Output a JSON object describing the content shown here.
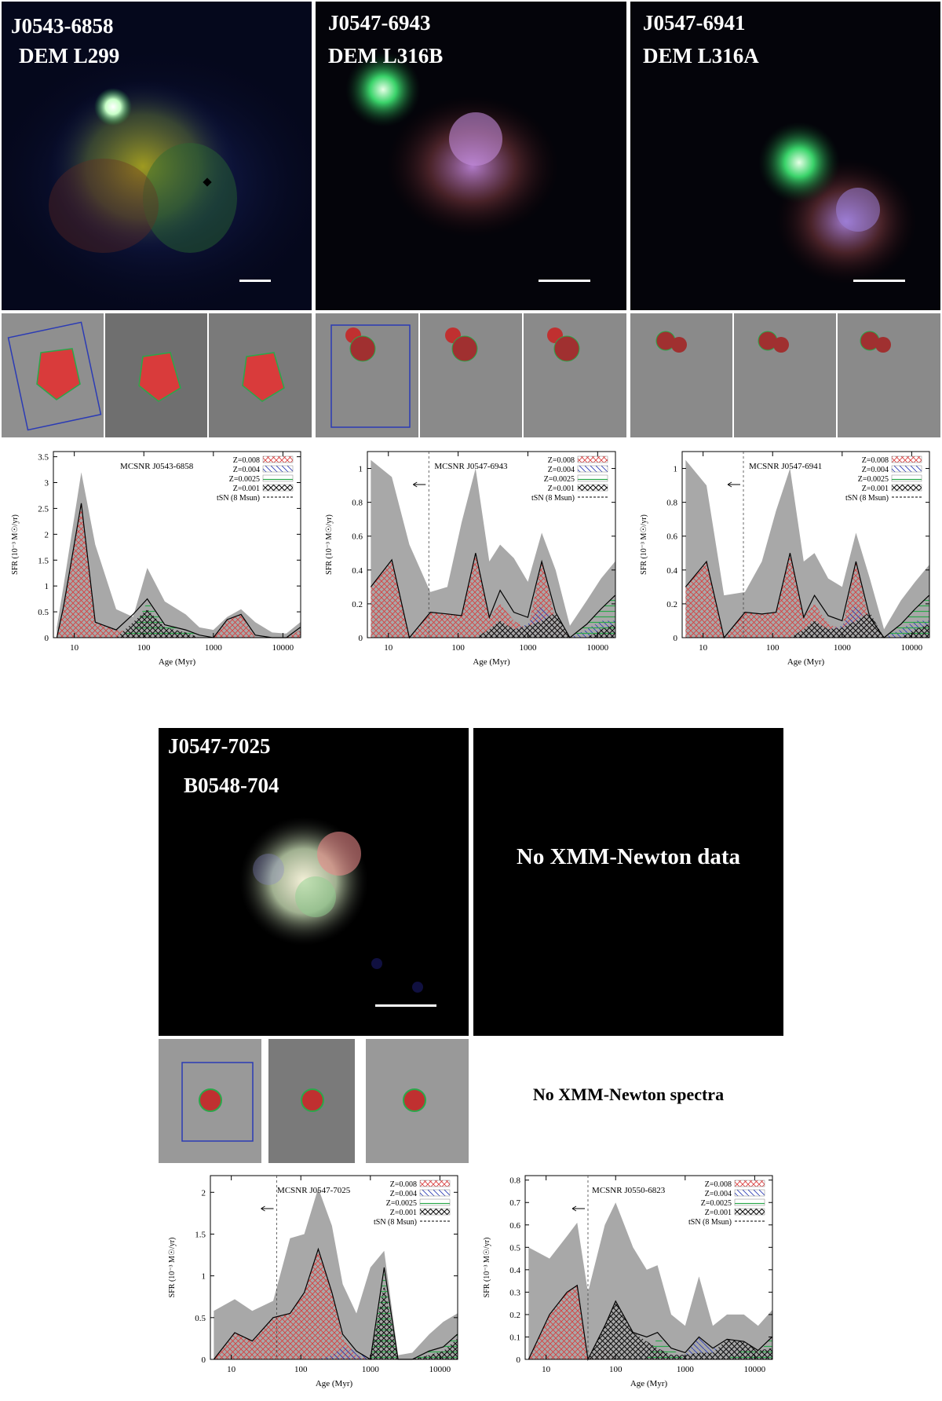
{
  "panels": [
    {
      "id": "J0543-6858",
      "alt": "DEM L299"
    },
    {
      "id": "J0547-6943",
      "alt": "DEM L316B"
    },
    {
      "id": "J0547-6941",
      "alt": "DEM L316A"
    },
    {
      "id": "J0547-7025",
      "alt": "B0548-704"
    }
  ],
  "messages": {
    "no_data": "No XMM-Newton data",
    "no_spectra": "No XMM-Newton spectra"
  },
  "colors": {
    "z008": "#d93b3b",
    "z004": "#2b3bb5",
    "z0025": "#2aa84a",
    "z001": "#111111",
    "envelope": "#a8a8a8"
  },
  "shared_axes": {
    "xlabel": "Age (Myr)",
    "ylabel": "SFR (10⁻³ M☉/yr)",
    "xticks": [
      "10",
      "100",
      "1000",
      "10000"
    ],
    "legend": [
      "Z=0.008",
      "Z=0.004",
      "Z=0.0025",
      "Z=0.001",
      "tSN (8 Msun)"
    ]
  },
  "chart_data": [
    {
      "type": "area",
      "title": "MCSNR J0543-6858",
      "xscale": "log",
      "xlim": [
        5,
        18000
      ],
      "ylim": [
        0,
        3.6
      ],
      "yticks": [
        "0",
        "0.5",
        "1",
        "1.5",
        "2",
        "2.5",
        "3",
        "3.5"
      ],
      "x": [
        5.6,
        7,
        12.6,
        20,
        40,
        70,
        112,
        200,
        400,
        630,
        1000,
        1580,
        2500,
        4000,
        7000,
        11200,
        17800
      ],
      "upper": [
        0.2,
        1.0,
        3.2,
        1.8,
        0.55,
        0.4,
        1.35,
        0.7,
        0.45,
        0.2,
        0.15,
        0.4,
        0.55,
        0.3,
        0.1,
        0.08,
        0.3
      ],
      "total": [
        0.0,
        0.6,
        2.6,
        0.3,
        0.15,
        0.45,
        0.75,
        0.25,
        0.15,
        0.05,
        0.0,
        0.35,
        0.45,
        0.05,
        0.0,
        0.0,
        0.2
      ],
      "series": [
        {
          "name": "Z=0.008",
          "values": [
            0.0,
            0.6,
            2.6,
            0.3,
            0.15,
            0.1,
            0.05,
            0.05,
            0.05,
            0.0,
            0.0,
            0.35,
            0.45,
            0.0,
            0.0,
            0.0,
            0.15
          ]
        },
        {
          "name": "Z=0.004",
          "values": [
            0,
            0,
            0,
            0,
            0,
            0,
            0,
            0,
            0,
            0,
            0,
            0,
            0,
            0,
            0,
            0,
            0
          ]
        },
        {
          "name": "Z=0.0025",
          "values": [
            0,
            0,
            0,
            0,
            0,
            0.15,
            0.7,
            0.25,
            0.15,
            0.05,
            0,
            0,
            0,
            0.05,
            0,
            0,
            0
          ]
        },
        {
          "name": "Z=0.001",
          "values": [
            0,
            0,
            0,
            0,
            0,
            0.3,
            0.55,
            0.2,
            0.1,
            0.0,
            0,
            0,
            0,
            0,
            0,
            0,
            0
          ]
        }
      ],
      "tsn": null
    },
    {
      "type": "area",
      "title": "MCSNR J0547-6943",
      "xscale": "log",
      "xlim": [
        5,
        18000
      ],
      "ylim": [
        0,
        1.1
      ],
      "yticks": [
        "0",
        "0.2",
        "0.4",
        "0.6",
        "0.8",
        "1"
      ],
      "x": [
        5.6,
        11.2,
        20,
        40,
        70,
        112,
        178,
        280,
        400,
        630,
        1000,
        1580,
        2500,
        4000,
        7000,
        11200,
        17800
      ],
      "upper": [
        1.05,
        0.95,
        0.55,
        0.27,
        0.3,
        0.68,
        1.0,
        0.45,
        0.55,
        0.47,
        0.33,
        0.62,
        0.4,
        0.07,
        0.22,
        0.35,
        0.45
      ],
      "total": [
        0.3,
        0.46,
        0.0,
        0.15,
        0.14,
        0.13,
        0.5,
        0.12,
        0.28,
        0.15,
        0.12,
        0.45,
        0.15,
        0.0,
        0.08,
        0.17,
        0.25
      ],
      "series": [
        {
          "name": "Z=0.008",
          "values": [
            0.3,
            0.46,
            0.0,
            0.15,
            0.14,
            0.13,
            0.5,
            0.12,
            0.2,
            0.1,
            0.05,
            0.45,
            0.1,
            0.0,
            0.0,
            0.0,
            0.0
          ]
        },
        {
          "name": "Z=0.004",
          "values": [
            0,
            0,
            0,
            0,
            0,
            0,
            0,
            0,
            0.05,
            0.05,
            0.08,
            0.2,
            0.05,
            0,
            0.05,
            0.1,
            0.1
          ]
        },
        {
          "name": "Z=0.0025",
          "values": [
            0,
            0,
            0,
            0,
            0,
            0,
            0,
            0,
            0,
            0,
            0,
            0,
            0,
            0,
            0.08,
            0.17,
            0.25
          ]
        },
        {
          "name": "Z=0.001",
          "values": [
            0,
            0,
            0,
            0,
            0,
            0,
            0,
            0.05,
            0.1,
            0.05,
            0.07,
            0.1,
            0.15,
            0,
            0,
            0.05,
            0.08
          ]
        }
      ],
      "tsn": 38
    },
    {
      "type": "area",
      "title": "MCSNR J0547-6941",
      "xscale": "log",
      "xlim": [
        5,
        18000
      ],
      "ylim": [
        0,
        1.1
      ],
      "yticks": [
        "0",
        "0.2",
        "0.4",
        "0.6",
        "0.8",
        "1"
      ],
      "x": [
        5.6,
        11.2,
        20,
        40,
        70,
        112,
        178,
        280,
        400,
        630,
        1000,
        1580,
        2500,
        4000,
        7000,
        11200,
        17800
      ],
      "upper": [
        1.05,
        0.9,
        0.25,
        0.27,
        0.45,
        0.75,
        1.0,
        0.45,
        0.5,
        0.35,
        0.3,
        0.62,
        0.35,
        0.05,
        0.22,
        0.33,
        0.43
      ],
      "total": [
        0.3,
        0.45,
        0.0,
        0.15,
        0.14,
        0.15,
        0.5,
        0.12,
        0.25,
        0.13,
        0.1,
        0.45,
        0.12,
        0.0,
        0.08,
        0.17,
        0.25
      ],
      "series": [
        {
          "name": "Z=0.008",
          "values": [
            0.3,
            0.45,
            0.0,
            0.15,
            0.14,
            0.15,
            0.5,
            0.12,
            0.2,
            0.08,
            0.05,
            0.45,
            0.08,
            0,
            0,
            0,
            0
          ]
        },
        {
          "name": "Z=0.004",
          "values": [
            0,
            0,
            0,
            0,
            0,
            0,
            0,
            0,
            0.05,
            0.05,
            0.07,
            0.2,
            0.05,
            0,
            0.05,
            0.1,
            0.1
          ]
        },
        {
          "name": "Z=0.0025",
          "values": [
            0,
            0,
            0,
            0,
            0,
            0,
            0,
            0,
            0,
            0,
            0,
            0,
            0,
            0,
            0.08,
            0.17,
            0.25
          ]
        },
        {
          "name": "Z=0.001",
          "values": [
            0,
            0,
            0,
            0,
            0,
            0,
            0,
            0.05,
            0.1,
            0.05,
            0.06,
            0.1,
            0.15,
            0,
            0,
            0.05,
            0.08
          ]
        }
      ],
      "tsn": 38
    },
    {
      "type": "area",
      "title": "MCSNR J0547-7025",
      "xscale": "log",
      "xlim": [
        5,
        18000
      ],
      "ylim": [
        0,
        2.2
      ],
      "yticks": [
        "0",
        "0.5",
        "1",
        "1.5",
        "2"
      ],
      "x": [
        5.6,
        11.2,
        20,
        40,
        70,
        112,
        178,
        280,
        400,
        630,
        1000,
        1580,
        2500,
        4000,
        7000,
        11200,
        17800
      ],
      "upper": [
        0.58,
        0.72,
        0.58,
        0.7,
        1.45,
        1.5,
        2.05,
        1.6,
        0.9,
        0.55,
        1.1,
        1.3,
        0.05,
        0.08,
        0.3,
        0.45,
        0.55
      ],
      "total": [
        0.0,
        0.32,
        0.22,
        0.5,
        0.55,
        0.8,
        1.32,
        0.8,
        0.3,
        0.1,
        0.0,
        1.1,
        0.0,
        0.0,
        0.1,
        0.15,
        0.3
      ],
      "series": [
        {
          "name": "Z=0.008",
          "values": [
            0.0,
            0.32,
            0.22,
            0.5,
            0.55,
            0.8,
            1.32,
            0.8,
            0.25,
            0.05,
            0,
            0,
            0,
            0,
            0,
            0,
            0
          ]
        },
        {
          "name": "Z=0.004",
          "values": [
            0,
            0,
            0,
            0,
            0,
            0,
            0,
            0.05,
            0.15,
            0.1,
            0,
            0,
            0,
            0,
            0,
            0,
            0
          ]
        },
        {
          "name": "Z=0.0025",
          "values": [
            0,
            0,
            0,
            0,
            0,
            0,
            0,
            0,
            0,
            0,
            0,
            1.05,
            0,
            0,
            0.1,
            0.15,
            0.3
          ]
        },
        {
          "name": "Z=0.001",
          "values": [
            0,
            0,
            0,
            0,
            0,
            0,
            0,
            0,
            0,
            0,
            0,
            0.9,
            0,
            0,
            0.05,
            0.1,
            0.25
          ]
        }
      ],
      "tsn": 45
    },
    {
      "type": "area",
      "title": "MCSNR J0550-6823",
      "xscale": "log",
      "xlim": [
        5,
        18000
      ],
      "ylim": [
        0,
        0.82
      ],
      "yticks": [
        "0",
        "0.1",
        "0.2",
        "0.3",
        "0.4",
        "0.5",
        "0.6",
        "0.7",
        "0.8"
      ],
      "x": [
        5.6,
        11.2,
        20,
        28,
        40,
        70,
        100,
        178,
        280,
        400,
        630,
        1000,
        1580,
        2500,
        4000,
        7000,
        11200,
        17800
      ],
      "upper": [
        0.5,
        0.45,
        0.55,
        0.61,
        0.3,
        0.6,
        0.7,
        0.5,
        0.4,
        0.42,
        0.2,
        0.15,
        0.37,
        0.15,
        0.2,
        0.2,
        0.15,
        0.22
      ],
      "total": [
        0.0,
        0.2,
        0.3,
        0.33,
        0.0,
        0.15,
        0.26,
        0.12,
        0.1,
        0.12,
        0.05,
        0.03,
        0.1,
        0.05,
        0.09,
        0.08,
        0.04,
        0.1
      ],
      "series": [
        {
          "name": "Z=0.008",
          "values": [
            0.0,
            0.2,
            0.3,
            0.33,
            0.0,
            0.05,
            0.0,
            0.0,
            0.0,
            0.05,
            0.0,
            0.0,
            0.0,
            0.0,
            0.0,
            0.0,
            0.0,
            0.0
          ]
        },
        {
          "name": "Z=0.004",
          "values": [
            0,
            0,
            0,
            0,
            0,
            0,
            0,
            0,
            0.05,
            0.05,
            0.02,
            0.02,
            0.1,
            0.05,
            0.05,
            0.05,
            0.02,
            0.05
          ]
        },
        {
          "name": "Z=0.0025",
          "values": [
            0,
            0,
            0,
            0,
            0,
            0,
            0,
            0,
            0,
            0.1,
            0.05,
            0,
            0,
            0,
            0,
            0.05,
            0.03,
            0.1
          ]
        },
        {
          "name": "Z=0.001",
          "values": [
            0,
            0,
            0,
            0,
            0,
            0.15,
            0.26,
            0.12,
            0.08,
            0.05,
            0.02,
            0.02,
            0.03,
            0.03,
            0.09,
            0.08,
            0.04,
            0.05
          ]
        }
      ],
      "tsn": 40
    }
  ]
}
